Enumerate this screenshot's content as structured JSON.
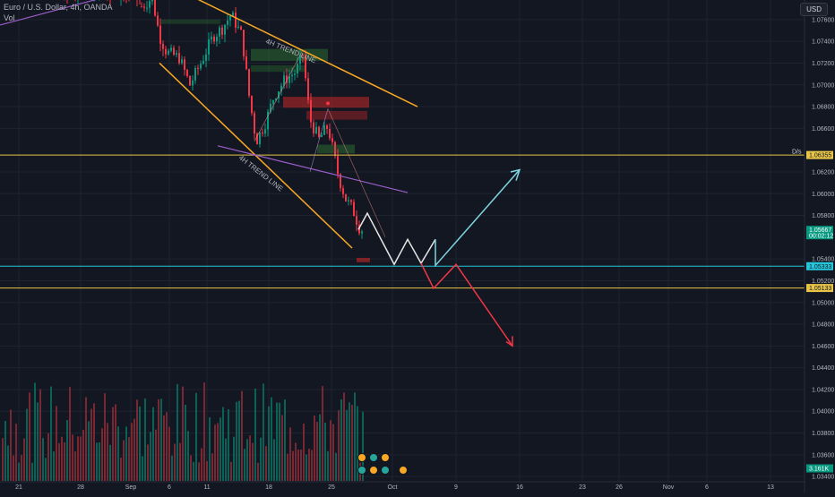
{
  "header": {
    "symbol_line": "Euro / U.S. Dollar, 4h, OANDA",
    "volume_label": "Vol"
  },
  "currency": "USD",
  "colors": {
    "background": "#131722",
    "grid": "#1f2330",
    "up_candle": "#089981",
    "down_candle": "#f23645",
    "channel_line": "#f9a825",
    "trend_line": "#9c5ec9",
    "level_yellow": "#e8c547",
    "level_teal": "#26c6da",
    "path_teal": "#7fd6e0",
    "path_red": "#f23645",
    "path_white": "#e6e6e6"
  },
  "chart_data": {
    "type": "candlestick",
    "ylim": [
      1.0336,
      1.0778
    ],
    "y_ticks": [
      "1.07600",
      "1.07400",
      "1.07200",
      "1.07000",
      "1.06800",
      "1.06600",
      "1.06200",
      "1.06000",
      "1.05800",
      "1.05400",
      "1.05200",
      "1.05000",
      "1.04800",
      "1.04600",
      "1.04400",
      "1.04200",
      "1.04000",
      "1.03800",
      "1.03600",
      "1.03400"
    ],
    "x_ticks": [
      "21",
      "28",
      "Sep",
      "6",
      "11",
      "18",
      "25",
      "Oct",
      "9",
      "16",
      "23",
      "26",
      "Nov",
      "6",
      "13"
    ],
    "price_tags": [
      {
        "text": "1.05667",
        "sub": "00:02:12",
        "value": 1.05667,
        "color": "up"
      },
      {
        "text": "1.06355",
        "value": 1.06355,
        "color": "yellow",
        "label": "D/s"
      },
      {
        "text": "1.05333",
        "value": 1.05333,
        "color": "teal"
      },
      {
        "text": "1.05133",
        "value": 1.05133,
        "color": "yellow"
      },
      {
        "text": "3.161K",
        "value": null,
        "color": "up"
      }
    ],
    "horizontal_levels": [
      {
        "value": 1.06355,
        "color": "yellow"
      },
      {
        "value": 1.05333,
        "color": "teal"
      },
      {
        "value": 1.05133,
        "color": "yellow"
      }
    ],
    "annotations": [
      "4H TREND LINE",
      "4H TREND LINE"
    ],
    "forecast": {
      "white_zigzag": [
        [
          "t1",
          1.058
        ],
        [
          "t2",
          1.0535
        ],
        [
          "t3",
          1.0557
        ],
        [
          "t4",
          1.0535
        ],
        [
          "t5",
          1.0557
        ],
        [
          "t6",
          1.0535
        ]
      ],
      "teal_up": [
        [
          "t6",
          1.0535
        ],
        [
          "t7",
          1.0622
        ]
      ],
      "red_down": [
        [
          "t5",
          1.0557
        ],
        [
          "t6",
          1.0513
        ],
        [
          "t7",
          1.0535
        ],
        [
          "t8",
          1.0461
        ]
      ]
    }
  }
}
